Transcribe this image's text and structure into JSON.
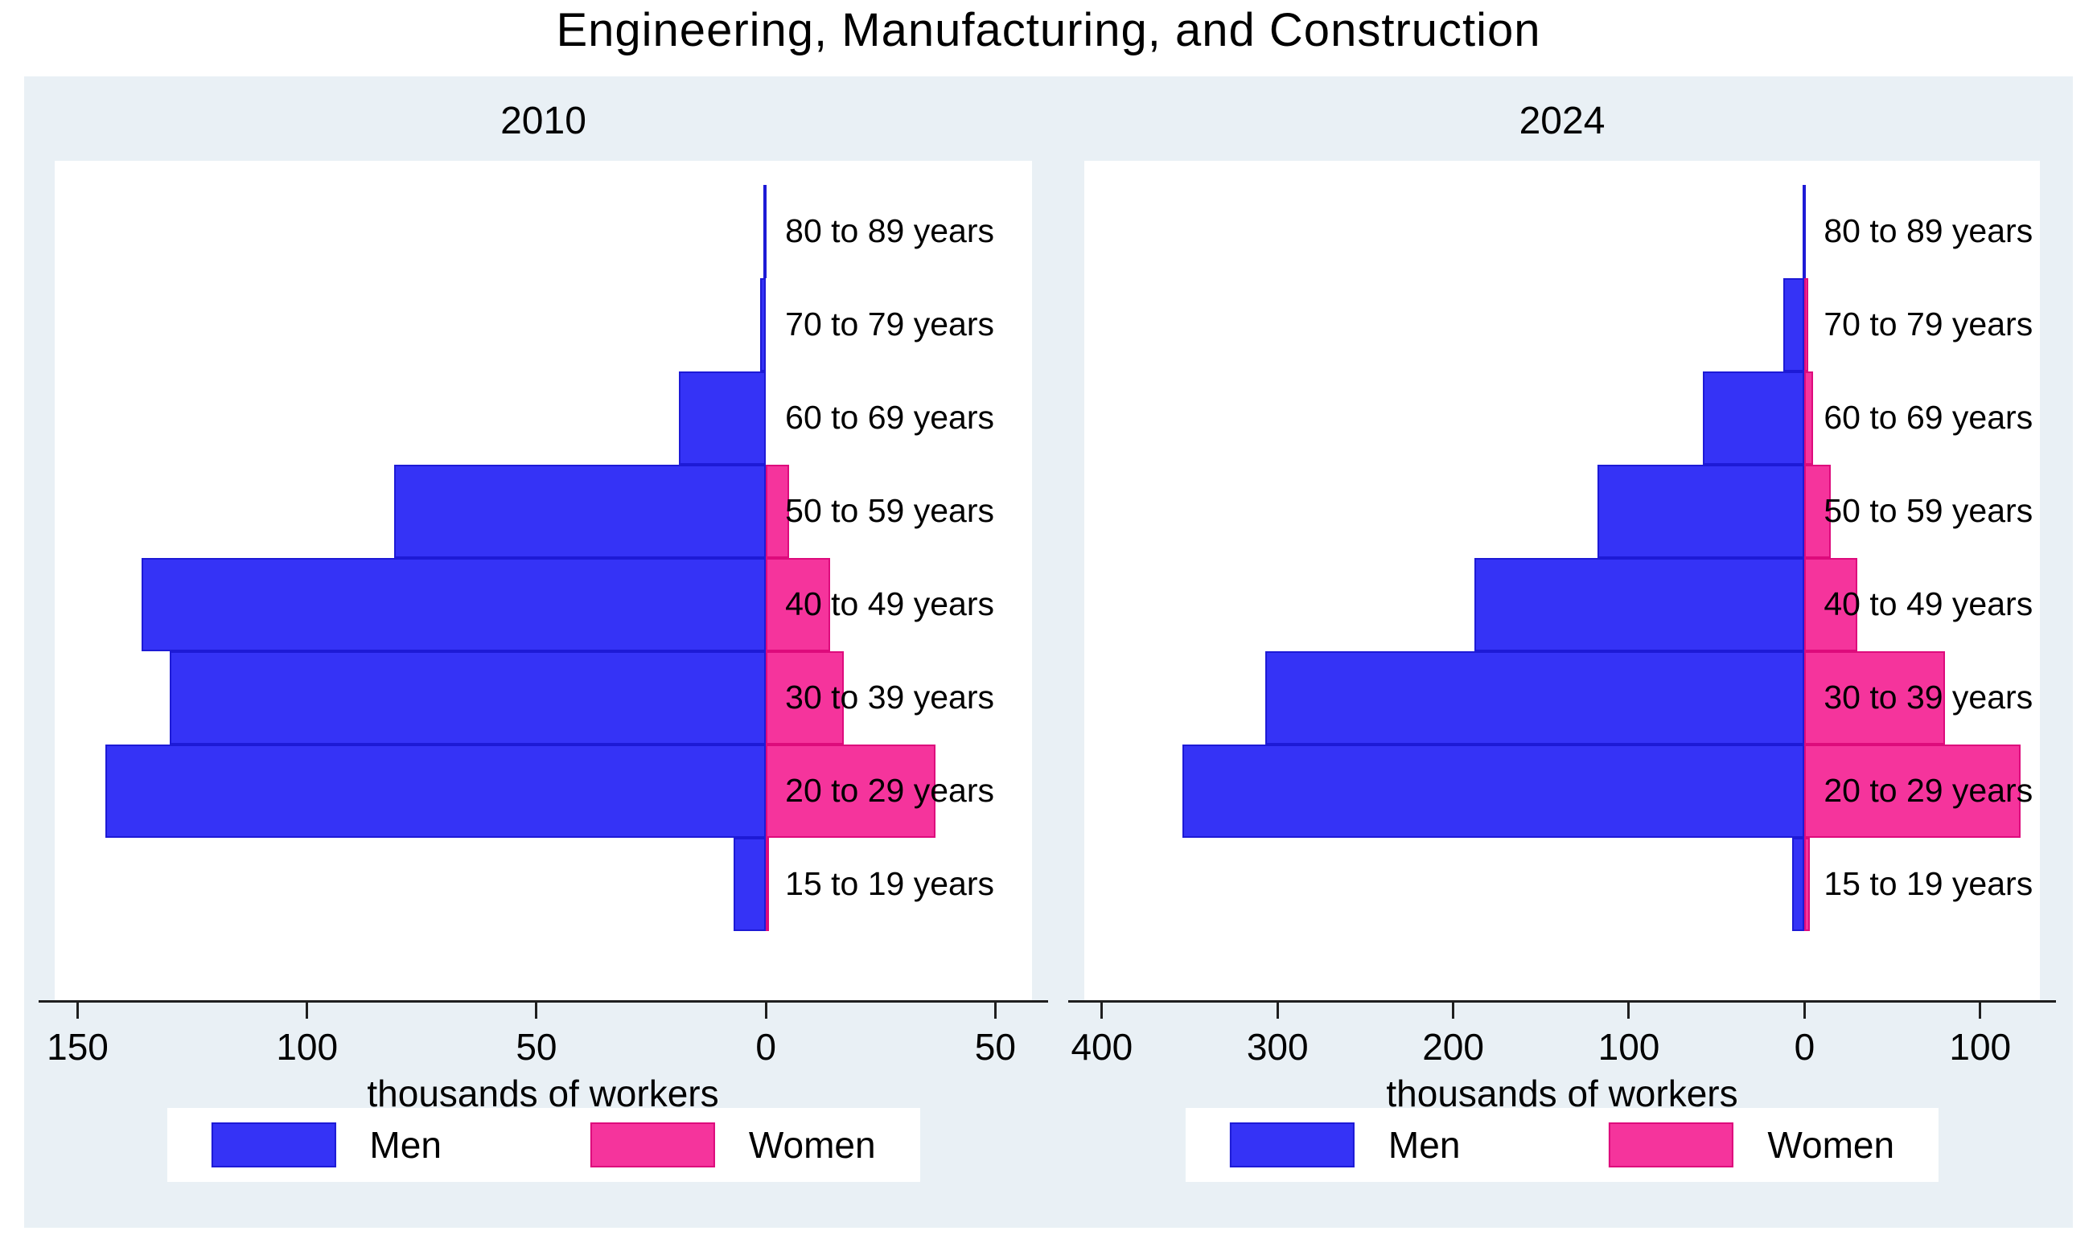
{
  "title": "Engineering, Manufacturing, and Construction",
  "xlabel": "thousands of workers",
  "legend": {
    "men_label": "Men",
    "women_label": "Women"
  },
  "colors": {
    "background": "#e9f0f5",
    "plot_background": "#ffffff",
    "men_fill": "#3533f6",
    "men_border": "#1d1ad6",
    "women_fill": "#f5349c",
    "women_border": "#dd0b7c",
    "axis": "#1f1f1f"
  },
  "chart_data": [
    {
      "type": "bar",
      "subtitle": "2010",
      "orientation": "horizontal population pyramid (men left, women right)",
      "unit": "thousands of workers",
      "categories": [
        "80 to 89 years",
        "70 to 79 years",
        "60 to 69 years",
        "50 to 59 years",
        "40 to 49 years",
        "30 to 39 years",
        "20 to 29 years",
        "15 to 19 years"
      ],
      "series": [
        {
          "name": "Men",
          "values": [
            0.5,
            1.2,
            19,
            81,
            136,
            130,
            144,
            7
          ]
        },
        {
          "name": "Women",
          "values": [
            0,
            0,
            0,
            5,
            14,
            17,
            37,
            0.5
          ]
        }
      ],
      "xlim": [
        -155,
        58
      ],
      "grid": false,
      "legend_position": "bottom",
      "ticks": [
        {
          "value": -150,
          "label": "150"
        },
        {
          "value": -100,
          "label": "100"
        },
        {
          "value": -50,
          "label": "50"
        },
        {
          "value": 0,
          "label": "0"
        },
        {
          "value": 50,
          "label": "50"
        }
      ]
    },
    {
      "type": "bar",
      "subtitle": "2024",
      "orientation": "horizontal population pyramid (men left, women right)",
      "unit": "thousands of workers",
      "categories": [
        "80 to 89 years",
        "70 to 79 years",
        "60 to 69 years",
        "50 to 59 years",
        "40 to 49 years",
        "30 to 39 years",
        "20 to 29 years",
        "15 to 19 years"
      ],
      "series": [
        {
          "name": "Men",
          "values": [
            1,
            12,
            58,
            118,
            188,
            307,
            354,
            7
          ]
        },
        {
          "name": "Women",
          "values": [
            0,
            2,
            5,
            15,
            30,
            80,
            123,
            3
          ]
        }
      ],
      "xlim": [
        -410,
        134
      ],
      "grid": false,
      "legend_position": "bottom",
      "ticks": [
        {
          "value": -400,
          "label": "400"
        },
        {
          "value": -300,
          "label": "300"
        },
        {
          "value": -200,
          "label": "200"
        },
        {
          "value": -100,
          "label": "100"
        },
        {
          "value": 0,
          "label": "0"
        },
        {
          "value": 100,
          "label": "100"
        }
      ]
    }
  ]
}
